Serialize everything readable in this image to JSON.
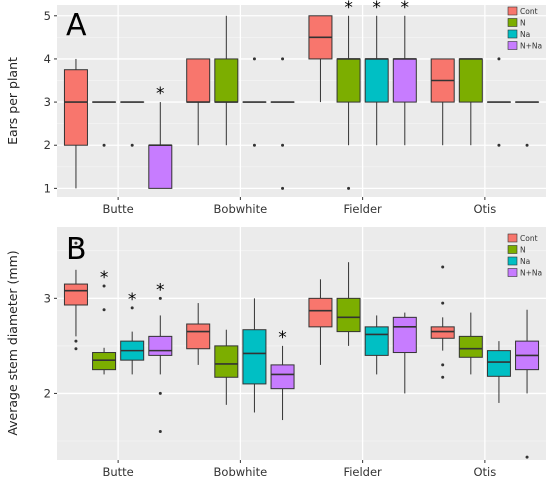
{
  "colors": {
    "panel_bg": "#EBEBEB",
    "grid": "#FFFFFF",
    "Cont": "#F8766D",
    "N": "#7CAE00",
    "Na": "#00BFC4",
    "N+Na": "#C77CFF"
  },
  "chart_data": [
    {
      "type": "box",
      "panel_label": "A",
      "title": "",
      "xlabel": "",
      "ylabel": "Ears per plant",
      "ylim": [
        0.8,
        5.25
      ],
      "yticks": [
        1,
        2,
        3,
        4,
        5
      ],
      "grid": true,
      "legend_position": "top-right",
      "categories": [
        "Butte",
        "Bobwhite",
        "Fielder",
        "Otis"
      ],
      "series": [
        {
          "name": "Cont",
          "color_key": "Cont",
          "boxes": [
            {
              "min": 1,
              "q1": 2,
              "median": 3,
              "q3": 3.75,
              "max": 4,
              "outliers": []
            },
            {
              "min": 2,
              "q1": 3,
              "median": 3,
              "q3": 4,
              "max": 4,
              "outliers": []
            },
            {
              "min": 3,
              "q1": 4,
              "median": 4.5,
              "q3": 5,
              "max": 5,
              "outliers": []
            },
            {
              "min": 2,
              "q1": 3,
              "median": 3.5,
              "q3": 4,
              "max": 4,
              "outliers": []
            }
          ]
        },
        {
          "name": "N",
          "color_key": "N",
          "boxes": [
            {
              "min": 3,
              "q1": 3,
              "median": 3,
              "q3": 3,
              "max": 3,
              "outliers": [
                2
              ]
            },
            {
              "min": 2,
              "q1": 3,
              "median": 3,
              "q3": 4,
              "max": 5,
              "outliers": []
            },
            {
              "min": 2,
              "q1": 3,
              "median": 4,
              "q3": 4,
              "max": 5,
              "outliers": [
                1
              ]
            },
            {
              "min": 2,
              "q1": 3,
              "median": 4,
              "q3": 4,
              "max": 4,
              "outliers": []
            }
          ]
        },
        {
          "name": "Na",
          "color_key": "Na",
          "boxes": [
            {
              "min": 3,
              "q1": 3,
              "median": 3,
              "q3": 3,
              "max": 3,
              "outliers": [
                2
              ]
            },
            {
              "min": 3,
              "q1": 3,
              "median": 3,
              "q3": 3,
              "max": 3,
              "outliers": [
                4,
                2
              ]
            },
            {
              "min": 2,
              "q1": 3,
              "median": 4,
              "q3": 4,
              "max": 5,
              "outliers": []
            },
            {
              "min": 3,
              "q1": 3,
              "median": 3,
              "q3": 3,
              "max": 3,
              "outliers": [
                4,
                2
              ]
            }
          ]
        },
        {
          "name": "N+Na",
          "color_key": "N+Na",
          "boxes": [
            {
              "min": 1,
              "q1": 1,
              "median": 2,
              "q3": 2,
              "max": 3,
              "outliers": []
            },
            {
              "min": 3,
              "q1": 3,
              "median": 3,
              "q3": 3,
              "max": 3,
              "outliers": [
                4,
                2,
                1
              ]
            },
            {
              "min": 2,
              "q1": 3,
              "median": 4,
              "q3": 4,
              "max": 5,
              "outliers": []
            },
            {
              "min": 3,
              "q1": 3,
              "median": 3,
              "q3": 3,
              "max": 3,
              "outliers": [
                2
              ]
            }
          ]
        }
      ],
      "significance": [
        {
          "category": 0,
          "series": 3,
          "text": "*"
        },
        {
          "category": 2,
          "series": 1,
          "text": "*"
        },
        {
          "category": 2,
          "series": 2,
          "text": "*"
        },
        {
          "category": 2,
          "series": 3,
          "text": "*"
        }
      ]
    },
    {
      "type": "box",
      "panel_label": "B",
      "title": "",
      "xlabel": "",
      "ylabel": "Average stem diameter (mm)",
      "ylim": [
        1.3,
        3.75
      ],
      "yticks": [
        2,
        3
      ],
      "grid": true,
      "legend_position": "top-right",
      "categories": [
        "Butte",
        "Bobwhite",
        "Fielder",
        "Otis"
      ],
      "series": [
        {
          "name": "Cont",
          "color_key": "Cont",
          "boxes": [
            {
              "min": 2.6,
              "q1": 2.93,
              "median": 3.08,
              "q3": 3.15,
              "max": 3.3,
              "outliers": [
                3.58,
                2.55,
                2.47
              ]
            },
            {
              "min": 2.3,
              "q1": 2.47,
              "median": 2.65,
              "q3": 2.73,
              "max": 2.95,
              "outliers": []
            },
            {
              "min": 2.3,
              "q1": 2.7,
              "median": 2.87,
              "q3": 3.0,
              "max": 3.2,
              "outliers": []
            },
            {
              "min": 2.45,
              "q1": 2.58,
              "median": 2.65,
              "q3": 2.7,
              "max": 2.8,
              "outliers": [
                3.33,
                2.95,
                2.3,
                2.17
              ]
            }
          ]
        },
        {
          "name": "N",
          "color_key": "N",
          "boxes": [
            {
              "min": 2.2,
              "q1": 2.25,
              "median": 2.35,
              "q3": 2.43,
              "max": 2.48,
              "outliers": [
                3.13,
                2.88
              ]
            },
            {
              "min": 1.88,
              "q1": 2.17,
              "median": 2.31,
              "q3": 2.5,
              "max": 2.67,
              "outliers": []
            },
            {
              "min": 2.5,
              "q1": 2.65,
              "median": 2.8,
              "q3": 3.0,
              "max": 3.38,
              "outliers": []
            },
            {
              "min": 2.2,
              "q1": 2.38,
              "median": 2.47,
              "q3": 2.6,
              "max": 2.85,
              "outliers": []
            }
          ]
        },
        {
          "name": "Na",
          "color_key": "Na",
          "boxes": [
            {
              "min": 2.2,
              "q1": 2.35,
              "median": 2.45,
              "q3": 2.55,
              "max": 2.65,
              "outliers": [
                2.9
              ]
            },
            {
              "min": 1.8,
              "q1": 2.1,
              "median": 2.42,
              "q3": 2.67,
              "max": 3.0,
              "outliers": []
            },
            {
              "min": 2.2,
              "q1": 2.4,
              "median": 2.62,
              "q3": 2.7,
              "max": 2.82,
              "outliers": []
            },
            {
              "min": 1.9,
              "q1": 2.18,
              "median": 2.33,
              "q3": 2.45,
              "max": 2.55,
              "outliers": []
            }
          ]
        },
        {
          "name": "N+Na",
          "color_key": "N+Na",
          "boxes": [
            {
              "min": 2.2,
              "q1": 2.4,
              "median": 2.45,
              "q3": 2.6,
              "max": 2.82,
              "outliers": [
                3.0,
                2.0,
                1.6
              ]
            },
            {
              "min": 1.72,
              "q1": 2.05,
              "median": 2.2,
              "q3": 2.3,
              "max": 2.5,
              "outliers": []
            },
            {
              "min": 2.0,
              "q1": 2.43,
              "median": 2.7,
              "q3": 2.8,
              "max": 2.85,
              "outliers": []
            },
            {
              "min": 2.0,
              "q1": 2.25,
              "median": 2.4,
              "q3": 2.55,
              "max": 2.88,
              "outliers": [
                1.33
              ]
            }
          ]
        }
      ],
      "significance": [
        {
          "category": 0,
          "series": 1,
          "text": "*"
        },
        {
          "category": 0,
          "series": 2,
          "text": "*"
        },
        {
          "category": 0,
          "series": 3,
          "text": "*"
        },
        {
          "category": 1,
          "series": 3,
          "text": "*"
        }
      ]
    }
  ]
}
